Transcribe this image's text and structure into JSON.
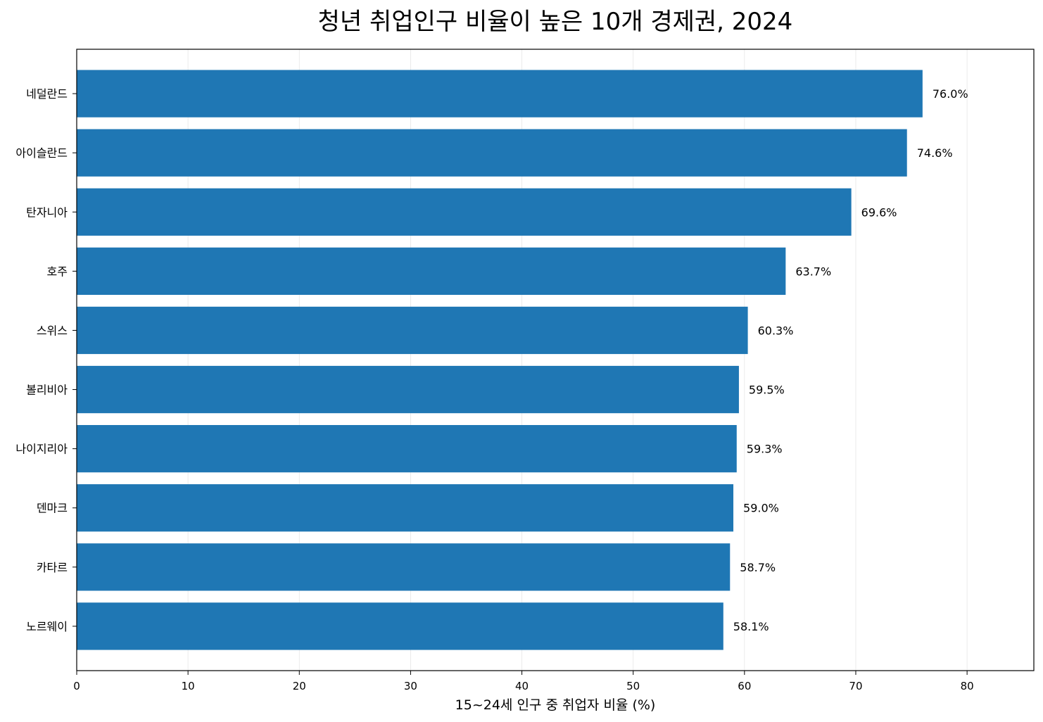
{
  "chart_data": {
    "type": "bar",
    "orientation": "horizontal",
    "title": "청년 취업인구 비율이 높은 10개 경제권, 2024",
    "xlabel": "15~24세 인구 중 취업자 비율 (%)",
    "ylabel": "",
    "xlim": [
      0,
      86
    ],
    "xticks": [
      0,
      10,
      20,
      30,
      40,
      50,
      60,
      70,
      80
    ],
    "grid": "vertical",
    "bar_color": "#1f77b4",
    "categories": [
      "네덜란드",
      "아이슬란드",
      "탄자니아",
      "호주",
      "스위스",
      "볼리비아",
      "나이지리아",
      "덴마크",
      "카타르",
      "노르웨이"
    ],
    "values": [
      76.0,
      74.6,
      69.6,
      63.7,
      60.3,
      59.5,
      59.3,
      59.0,
      58.7,
      58.1
    ],
    "value_labels": [
      "76.0%",
      "74.6%",
      "69.6%",
      "63.7%",
      "60.3%",
      "59.5%",
      "59.3%",
      "59.0%",
      "58.7%",
      "58.1%"
    ]
  }
}
